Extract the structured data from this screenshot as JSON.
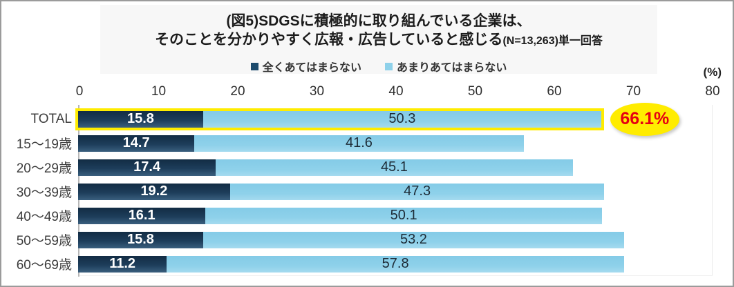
{
  "title": {
    "line1": "(図5)SDGSに積極的に取り組んでいる企業は、",
    "line2": "そのことを分かりやすく広報・広告していると感じる",
    "sample_size": "(N=13,263)単一回答"
  },
  "unit_label": "(%)",
  "legend": {
    "items": [
      {
        "label": "全くあてはまらない",
        "color": "#1d4b6d"
      },
      {
        "label": "あまりあてはまらない",
        "color": "#8ed1ea"
      }
    ]
  },
  "annotation": {
    "text": "66.1%",
    "target_category": "TOTAL",
    "bg_color": "#ffec00",
    "text_color": "#e60012"
  },
  "highlight": {
    "target_category": "TOTAL",
    "border_color": "#ffec00"
  },
  "chart_data": {
    "type": "bar",
    "orientation": "horizontal",
    "stacked": true,
    "title": "(図5)SDGSに積極的に取り組んでいる企業は、そのことを分かりやすく広報・広告していると感じる(N=13,263)単一回答",
    "categories": [
      "TOTAL",
      "15〜19歳",
      "20〜29歳",
      "30〜39歳",
      "40〜49歳",
      "50〜59歳",
      "60〜69歳"
    ],
    "series": [
      {
        "name": "全くあてはまらない",
        "color_dark": true,
        "values": [
          15.8,
          14.7,
          17.4,
          19.2,
          16.1,
          15.8,
          11.2
        ]
      },
      {
        "name": "あまりあてはまらない",
        "color_dark": false,
        "values": [
          50.3,
          41.6,
          45.1,
          47.3,
          50.1,
          53.2,
          57.8
        ]
      }
    ],
    "stack_totals": [
      66.1,
      56.3,
      62.5,
      66.5,
      66.2,
      69.0,
      69.0
    ],
    "highlighted_category": "TOTAL",
    "x_ticks": [
      0,
      10,
      20,
      30,
      40,
      50,
      60,
      70,
      80
    ],
    "xlim": [
      0,
      80
    ],
    "x_unit": "(%)",
    "legend_position": "top",
    "grid": false
  }
}
